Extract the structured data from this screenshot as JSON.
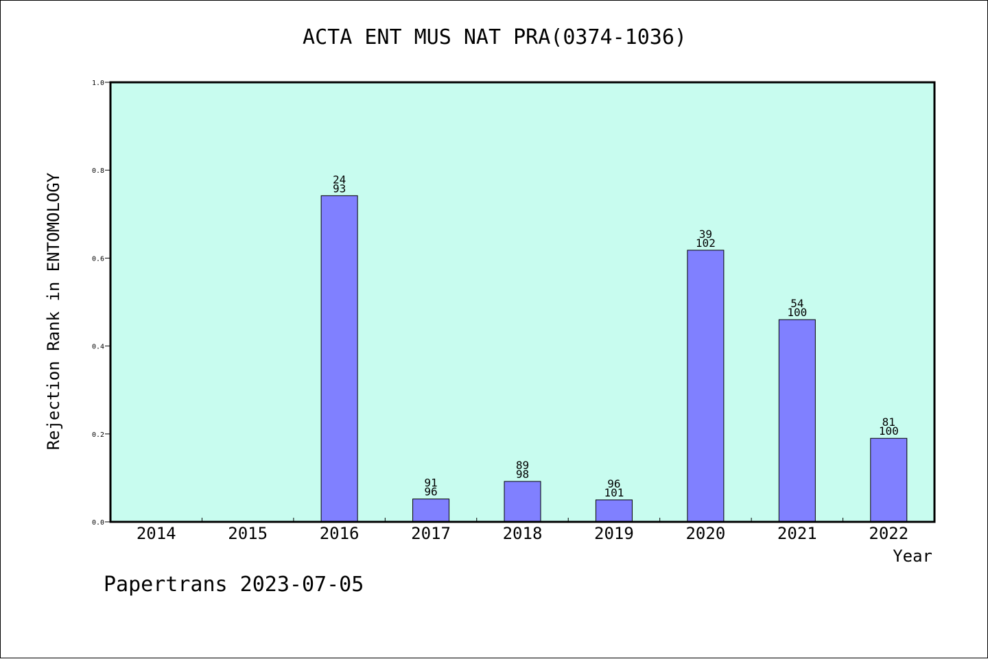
{
  "chart_data": {
    "type": "bar",
    "title": "ACTA ENT MUS NAT PRA(0374-1036)",
    "xlabel": "Year",
    "ylabel": "Rejection Rank in ENTOMOLOGY",
    "categories": [
      "2014",
      "2015",
      "2016",
      "2017",
      "2018",
      "2019",
      "2020",
      "2021",
      "2022"
    ],
    "values": [
      null,
      null,
      0.742,
      0.052,
      0.092,
      0.05,
      0.618,
      0.46,
      0.19
    ],
    "bar_labels_top": [
      "",
      "",
      "24",
      "91",
      "89",
      "96",
      "39",
      "54",
      "81"
    ],
    "bar_labels_bottom": [
      "",
      "",
      "93",
      "96",
      "98",
      "101",
      "102",
      "100",
      "100"
    ],
    "ylim": [
      0,
      1.0
    ],
    "yticks": [
      "0.0",
      "0.2",
      "0.4",
      "0.6",
      "0.8",
      "1.0"
    ],
    "grid": false,
    "colors": {
      "plot_background": "#c8fcef",
      "bar_fill": "#8080ff",
      "bar_stroke": "#000000"
    }
  },
  "footer": {
    "watermark": "Papertrans 2023-07-05"
  }
}
